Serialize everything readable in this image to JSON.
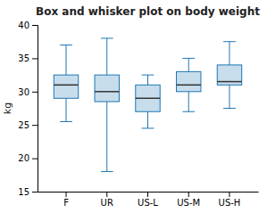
{
  "chart_data": {
    "type": "box",
    "title": "Box and whisker plot on body weight",
    "ylabel": "kg",
    "categories": [
      "F",
      "UR",
      "US-L",
      "US-M",
      "US-H"
    ],
    "boxes": [
      {
        "whislo": 25.5,
        "q1": 29.0,
        "med": 31.0,
        "q3": 32.5,
        "whishi": 37.0
      },
      {
        "whislo": 18.0,
        "q1": 28.5,
        "med": 30.0,
        "q3": 32.5,
        "whishi": 38.0
      },
      {
        "whislo": 24.5,
        "q1": 27.0,
        "med": 29.0,
        "q3": 31.0,
        "whishi": 32.5
      },
      {
        "whislo": 27.0,
        "q1": 30.0,
        "med": 31.0,
        "q3": 33.0,
        "whishi": 35.0
      },
      {
        "whislo": 27.5,
        "q1": 31.0,
        "med": 31.5,
        "q3": 34.0,
        "whishi": 37.5
      }
    ],
    "ylim": [
      15,
      40
    ],
    "yticks": [
      15,
      20,
      25,
      30,
      35,
      40
    ]
  }
}
